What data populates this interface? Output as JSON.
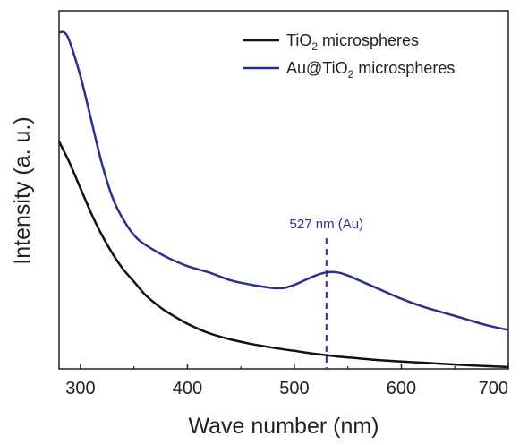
{
  "chart_data": {
    "type": "line",
    "xlabel": "Wave number (nm)",
    "ylabel": "Intensity (a. u.)",
    "xlim": [
      280,
      700
    ],
    "xticks": [
      "300",
      "400",
      "500",
      "600",
      "700"
    ],
    "grid": false,
    "legend_position": "top-right",
    "legend": [
      {
        "base": "TiO",
        "sub": "2",
        "rest": " microspheres"
      },
      {
        "base": "Au@TiO",
        "sub": "2",
        "rest": " microspheres"
      }
    ],
    "annotation": {
      "text": "527 nm (Au)",
      "x": 530,
      "color": "#2b2e8c"
    },
    "series": [
      {
        "color": "#111111",
        "x": [
          280,
          290,
          300,
          310,
          320,
          330,
          340,
          350,
          360,
          370,
          380,
          400,
          420,
          440,
          460,
          480,
          500,
          520,
          540,
          560,
          580,
          600,
          620,
          640,
          660,
          680,
          700
        ],
        "y": [
          0.73,
          0.66,
          0.58,
          0.5,
          0.43,
          0.37,
          0.32,
          0.28,
          0.24,
          0.21,
          0.185,
          0.145,
          0.115,
          0.095,
          0.08,
          0.068,
          0.058,
          0.048,
          0.04,
          0.034,
          0.028,
          0.024,
          0.02,
          0.016,
          0.012,
          0.009,
          0.006
        ]
      },
      {
        "color": "#2b2e8c",
        "x": [
          280,
          285,
          290,
          300,
          310,
          320,
          330,
          340,
          350,
          360,
          380,
          400,
          420,
          440,
          460,
          480,
          490,
          500,
          510,
          520,
          530,
          540,
          550,
          560,
          580,
          600,
          620,
          640,
          660,
          680,
          700
        ],
        "y": [
          1.08,
          1.08,
          1.05,
          0.94,
          0.8,
          0.66,
          0.55,
          0.48,
          0.43,
          0.4,
          0.36,
          0.33,
          0.31,
          0.285,
          0.27,
          0.26,
          0.26,
          0.27,
          0.285,
          0.3,
          0.31,
          0.31,
          0.3,
          0.285,
          0.255,
          0.225,
          0.2,
          0.18,
          0.16,
          0.14,
          0.125
        ]
      }
    ]
  }
}
